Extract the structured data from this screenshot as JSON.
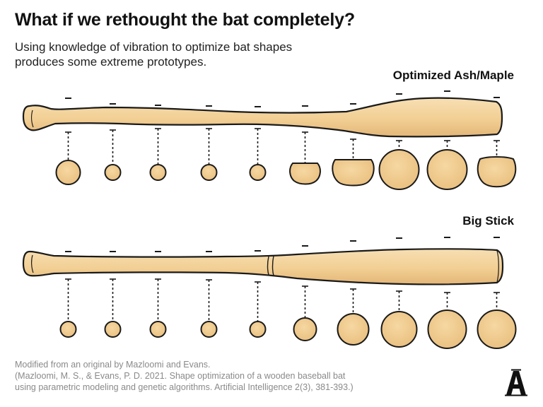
{
  "header": {
    "title": "What if we rethought the bat completely?",
    "subtitle": "Using knowledge of vibration to optimize bat shapes\nproduces some extreme prototypes."
  },
  "bats": [
    {
      "label": "Optimized Ash/Maple",
      "cross_sections": [
        {
          "shape": "circle",
          "relative_size": 0.63
        },
        {
          "shape": "circle",
          "relative_size": 0.42
        },
        {
          "shape": "circle",
          "relative_size": 0.42
        },
        {
          "shape": "circle",
          "relative_size": 0.42
        },
        {
          "shape": "circle",
          "relative_size": 0.42
        },
        {
          "shape": "flat-top",
          "relative_size": 0.74
        },
        {
          "shape": "flat-top",
          "relative_size": 1.0
        },
        {
          "shape": "circle",
          "relative_size": 1.05
        },
        {
          "shape": "circle",
          "relative_size": 1.05
        },
        {
          "shape": "flat-top",
          "relative_size": 0.95
        }
      ]
    },
    {
      "label": "Big Stick",
      "cross_sections": [
        {
          "shape": "circle",
          "relative_size": 0.42
        },
        {
          "shape": "circle",
          "relative_size": 0.42
        },
        {
          "shape": "circle",
          "relative_size": 0.42
        },
        {
          "shape": "circle",
          "relative_size": 0.42
        },
        {
          "shape": "circle",
          "relative_size": 0.55
        },
        {
          "shape": "circle",
          "relative_size": 0.65
        },
        {
          "shape": "circle",
          "relative_size": 0.8
        },
        {
          "shape": "circle",
          "relative_size": 0.88
        },
        {
          "shape": "circle",
          "relative_size": 0.92
        },
        {
          "shape": "circle",
          "relative_size": 0.92
        }
      ]
    }
  ],
  "footer": {
    "credit": "Modified from an original by Mazloomi and Evans.\n(Mazloomi, M. S., & Evans, P. D. 2021. Shape optimization of a wooden baseball bat\nusing parametric modeling and genetic algorithms. Artificial Intelligence 2(3), 381-393.)"
  },
  "logo": {
    "letter": "A",
    "name": "athletic-logo-icon"
  },
  "colors": {
    "wood": "#f5d9a7",
    "wood_shade": "#e9bd7e",
    "outline": "#1a1a1a",
    "footer_text": "#8a8a8a"
  }
}
